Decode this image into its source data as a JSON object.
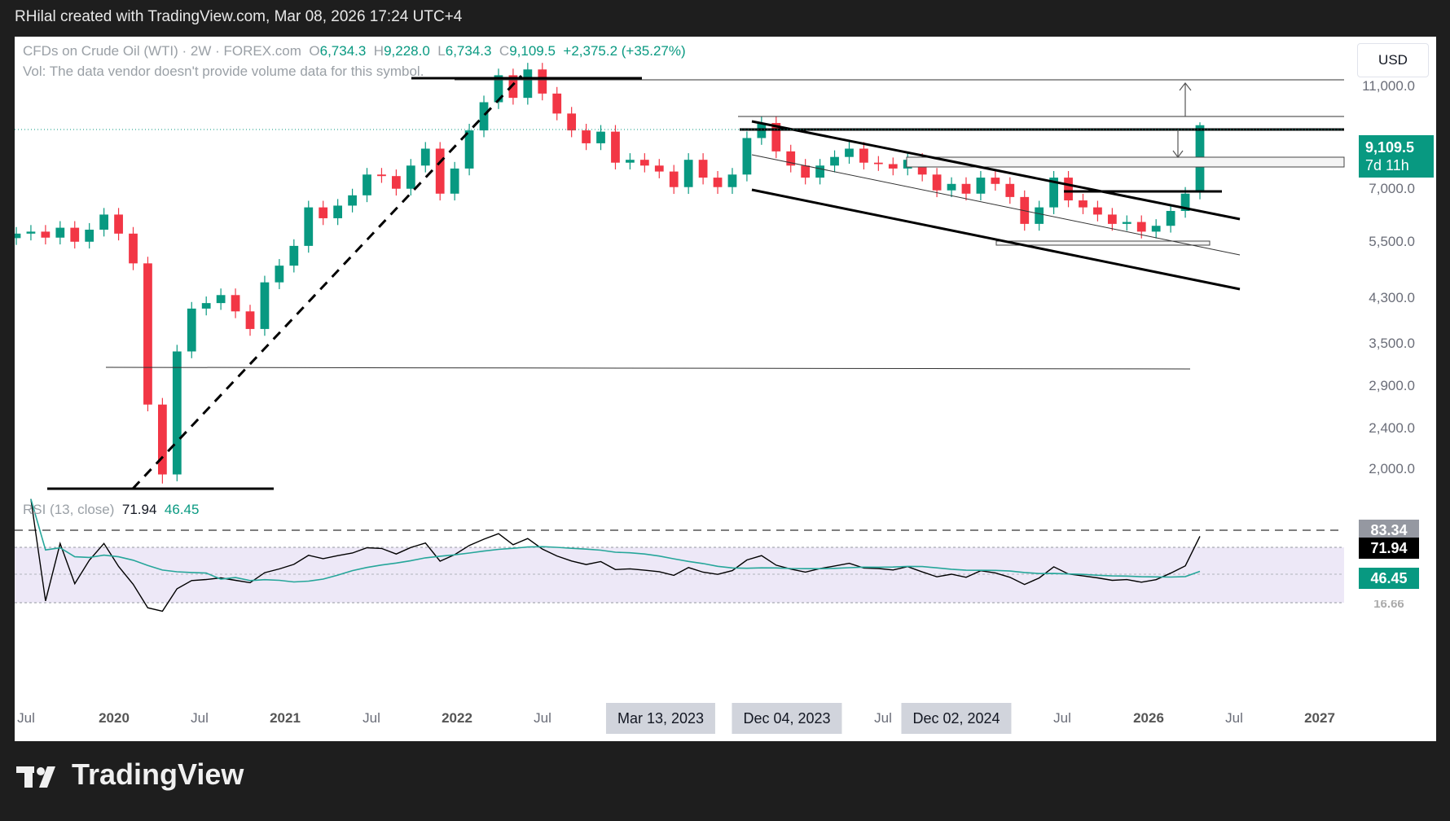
{
  "caption": "RHilal created with TradingView.com, Mar 08, 2026 17:24 UTC+4",
  "legend": {
    "symbol": "CFDs on Crude Oil (WTI) · 2W · FOREX.com",
    "o_label": "O",
    "o": "6,734.3",
    "h_label": "H",
    "h": "9,228.0",
    "l_label": "L",
    "l": "6,734.3",
    "c_label": "C",
    "c": "9,109.5",
    "change": "+2,375.2 (+35.27%)",
    "vol": "Vol: The data vendor doesn't provide volume data for this symbol."
  },
  "currency": "USD",
  "last_price": {
    "value": "9,109.5",
    "countdown": "7d 11h"
  },
  "price_ticks": [
    "11,000.0",
    "7,000.0",
    "5,500.0",
    "4,300.0",
    "3,500.0",
    "2,900.0",
    "2,400.0",
    "2,000.0"
  ],
  "time_ticks": [
    "Jul",
    "2020",
    "Jul",
    "2021",
    "Jul",
    "2022",
    "Jul",
    "Jul",
    "Jul",
    "2026",
    "Jul",
    "2027"
  ],
  "time_tags": [
    "Mar 13, 2023",
    "Dec 04, 2023",
    "Dec 02, 2024"
  ],
  "rsi": {
    "label": "RSI (13, close)",
    "value": "71.94",
    "ma_value": "46.45",
    "upper_level": "83.34",
    "lower_level_partial": "16.66"
  },
  "brand": "TradingView",
  "colors": {
    "up": "#089981",
    "down": "#f23645",
    "rsi_line": "#000000",
    "rsi_ma": "#26a69a",
    "rsi_band": "#ede8f7"
  },
  "chart_data": {
    "type": "candlestick",
    "title": "CFDs on Crude Oil (WTI) · 2W · FOREX.com",
    "y_scale": "log",
    "ylim": [
      1750,
      12600
    ],
    "x": [
      "2019-06",
      "2019-07",
      "2019-08",
      "2019-09",
      "2019-10",
      "2019-11",
      "2019-12",
      "2020-01",
      "2020-02",
      "2020-03",
      "2020-04",
      "2020-05",
      "2020-06",
      "2020-07",
      "2020-08",
      "2020-09",
      "2020-10",
      "2020-11",
      "2020-12",
      "2021-01",
      "2021-02",
      "2021-03",
      "2021-04",
      "2021-05",
      "2021-06",
      "2021-07",
      "2021-08",
      "2021-09",
      "2021-10",
      "2021-11",
      "2021-12",
      "2022-01",
      "2022-02",
      "2022-03",
      "2022-04",
      "2022-05",
      "2022-06",
      "2022-07",
      "2022-08",
      "2022-09",
      "2022-10",
      "2022-11",
      "2022-12",
      "2023-01",
      "2023-02",
      "2023-03",
      "2023-04",
      "2023-05",
      "2023-06",
      "2023-07",
      "2023-08",
      "2023-09",
      "2023-10",
      "2023-11",
      "2023-12",
      "2024-01",
      "2024-02",
      "2024-03",
      "2024-04",
      "2024-05",
      "2024-06",
      "2024-07",
      "2024-08",
      "2024-09",
      "2024-10",
      "2024-11",
      "2024-12",
      "2025-01",
      "2025-02",
      "2025-03",
      "2025-04",
      "2025-05",
      "2025-06",
      "2025-07",
      "2025-08",
      "2025-09",
      "2025-10",
      "2025-11",
      "2025-12",
      "2026-01",
      "2026-02",
      "2026-03"
    ],
    "close": [
      5600,
      5650,
      5500,
      5750,
      5400,
      5700,
      6100,
      5600,
      4900,
      2600,
      1900,
      3300,
      4000,
      4100,
      4250,
      3950,
      3650,
      4500,
      4850,
      5300,
      6300,
      6000,
      6350,
      6650,
      7300,
      7250,
      6850,
      7600,
      8200,
      6700,
      7500,
      8900,
      10100,
      11400,
      10300,
      11700,
      10500,
      9600,
      8900,
      8400,
      8850,
      7700,
      7800,
      7600,
      7400,
      6900,
      7800,
      7200,
      6900,
      7300,
      8600,
      9200,
      8100,
      7600,
      7200,
      7600,
      7900,
      8200,
      7700,
      7650,
      7500,
      7800,
      7300,
      6800,
      7000,
      6700,
      7200,
      7000,
      6600,
      5850,
      6300,
      7200,
      6500,
      6300,
      6100,
      5850,
      5900,
      5650,
      5800,
      6200,
      6700,
      9109.5
    ],
    "rsi_last": 71.94,
    "rsi_ma_last": 46.45,
    "rsi_levels": [
      83.34,
      71.94,
      46.45
    ]
  }
}
